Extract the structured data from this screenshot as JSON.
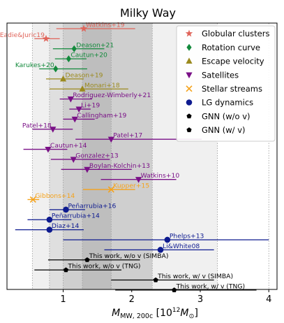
{
  "chart_data": {
    "type": "scatter",
    "title": "Milky Way",
    "xlabel_main": "M",
    "xlabel_sub": "MW, 200c",
    "xlabel_units_pre": "[10",
    "xlabel_units_exp": "12",
    "xlabel_units_main": "M",
    "xlabel_units_sub": "⊙",
    "xlabel_units_post": "]",
    "xlim": [
      0.18,
      4.12
    ],
    "xticks": [
      {
        "value": 1,
        "label": "1"
      },
      {
        "value": 2,
        "label": "2"
      },
      {
        "value": 3,
        "label": "3"
      },
      {
        "value": 4,
        "label": "4"
      }
    ],
    "dotted_lines": [
      0.55,
      0.8,
      1.0,
      1.28,
      1.7,
      2.3,
      3.25,
      4.0
    ],
    "shaded_bands": [
      {
        "from": 0.55,
        "to": 3.25,
        "opacity": 0.06
      },
      {
        "from": 0.8,
        "to": 2.3,
        "opacity": 0.07
      },
      {
        "from": 1.0,
        "to": 2.3,
        "opacity": 0.07
      },
      {
        "from": 1.28,
        "to": 1.7,
        "opacity": 0.08
      }
    ],
    "categories": [
      {
        "key": "gc",
        "name": "Globular clusters",
        "color": "#e0645a",
        "marker": "star"
      },
      {
        "key": "rc",
        "name": "Rotation curve",
        "color": "#138a3c",
        "marker": "diamond"
      },
      {
        "key": "ev",
        "name": "Escape velocity",
        "color": "#9b8a1e",
        "marker": "triangle-up"
      },
      {
        "key": "sat",
        "name": "Satellites",
        "color": "#7a1087",
        "marker": "triangle-down"
      },
      {
        "key": "ss",
        "name": "Stellar streams",
        "color": "#f5a21a",
        "marker": "x"
      },
      {
        "key": "lg",
        "name": "LG dynamics",
        "color": "#0d1a8f",
        "marker": "circle"
      },
      {
        "key": "gnn1",
        "name": "GNN (w/o v)",
        "color": "#000000",
        "marker": "pentagon"
      },
      {
        "key": "gnn2",
        "name": "GNN (w/ v)",
        "color": "#000000",
        "marker": "pentagon"
      }
    ],
    "rows": [
      {
        "label": "Watkins+19",
        "cat": "gc",
        "value": 1.3,
        "low": 0.9,
        "high": 2.05,
        "label_side": "right"
      },
      {
        "label": "Eadie&Juric19",
        "cat": "gc",
        "value": 0.75,
        "low": 0.58,
        "high": 0.95,
        "label_side": "left"
      },
      {
        "label": "Deason+21",
        "cat": "rc",
        "value": 1.16,
        "low": 0.85,
        "high": 1.6,
        "label_side": "right"
      },
      {
        "label": "Cautun+20",
        "cat": "rc",
        "value": 1.08,
        "low": 0.88,
        "high": 1.34,
        "label_side": "right"
      },
      {
        "label": "Karukes+20",
        "cat": "rc",
        "value": 0.89,
        "low": 0.65,
        "high": 1.35,
        "label_side": "left"
      },
      {
        "label": "Deason+19",
        "cat": "ev",
        "value": 1.0,
        "low": 0.75,
        "high": 1.3,
        "label_side": "right"
      },
      {
        "label": "Monari+18",
        "cat": "ev",
        "value": 1.28,
        "low": 0.8,
        "high": 1.95,
        "label_side": "right"
      },
      {
        "label": "Rodriguez-Wimberly+21",
        "cat": "sat",
        "value": 1.11,
        "low": 0.95,
        "high": 1.42,
        "label_side": "right"
      },
      {
        "label": "Li+19",
        "cat": "sat",
        "value": 1.23,
        "low": 1.09,
        "high": 1.4,
        "label_side": "right"
      },
      {
        "label": "Callingham+19",
        "cat": "sat",
        "value": 1.17,
        "low": 1.0,
        "high": 1.46,
        "label_side": "right"
      },
      {
        "label": "Patel+18",
        "cat": "sat",
        "value": 0.85,
        "low": 0.55,
        "high": 1.14,
        "label_side": "left"
      },
      {
        "label": "Patel+17",
        "cat": "sat",
        "value": 1.7,
        "low": 1.18,
        "high": 3.02,
        "label_side": "right"
      },
      {
        "label": "Cautun+14",
        "cat": "sat",
        "value": 0.78,
        "low": 0.42,
        "high": 1.06,
        "label_side": "right"
      },
      {
        "label": "Gonzalez+13",
        "cat": "sat",
        "value": 1.15,
        "low": 0.82,
        "high": 1.68,
        "label_side": "right"
      },
      {
        "label": "Boylan-Kolchin+13",
        "cat": "sat",
        "value": 1.35,
        "low": 0.97,
        "high": 2.0,
        "label_side": "right"
      },
      {
        "label": "Watkins+10",
        "cat": "sat",
        "value": 2.1,
        "low": 1.55,
        "high": 2.65,
        "label_side": "right"
      },
      {
        "label": "Kupper+15",
        "cat": "ss",
        "value": 1.7,
        "low": 1.29,
        "high": 2.05,
        "label_side": "right"
      },
      {
        "label": "Gibbons+14",
        "cat": "ss",
        "value": 0.56,
        "low": 0.48,
        "high": 0.65,
        "label_side": "right"
      },
      {
        "label": "Peñarrubia+16",
        "cat": "lg",
        "value": 1.04,
        "low": 0.8,
        "high": 1.32,
        "label_side": "right"
      },
      {
        "label": "Peñarrubia+14",
        "cat": "lg",
        "value": 0.8,
        "low": 0.48,
        "high": 1.12,
        "label_side": "right"
      },
      {
        "label": "Diaz+14",
        "cat": "lg",
        "value": 0.8,
        "low": 0.3,
        "high": 1.3,
        "label_side": "right"
      },
      {
        "label": "Phelps+13",
        "cat": "lg",
        "value": 2.52,
        "low": 1.0,
        "high": 4.0,
        "label_side": "right"
      },
      {
        "label": "Li&White08",
        "cat": "lg",
        "value": 2.42,
        "low": 1.6,
        "high": 3.2,
        "label_side": "right"
      },
      {
        "label": "This work, w/o v (SIMBA)",
        "cat": "gnn1",
        "value": 1.35,
        "low": 0.78,
        "high": 2.12,
        "label_side": "right"
      },
      {
        "label": "This work, w/o v (TNG)",
        "cat": "gnn1",
        "value": 1.04,
        "low": 0.58,
        "high": 1.85,
        "label_side": "right"
      },
      {
        "label": "This work, w/ v (SIMBA)",
        "cat": "gnn2",
        "value": 2.35,
        "low": 1.7,
        "high": 3.2,
        "label_side": "right"
      },
      {
        "label": "This work, w/ v (TNG)",
        "cat": "gnn2",
        "value": 2.62,
        "low": 1.76,
        "high": 3.82,
        "label_side": "right"
      }
    ]
  }
}
